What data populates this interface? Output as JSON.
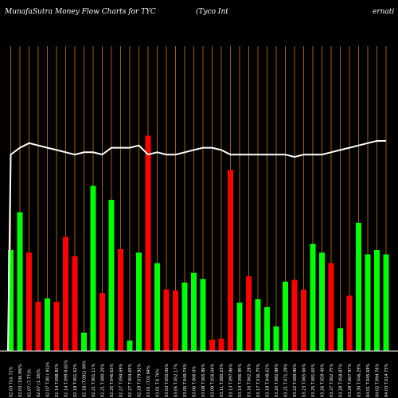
{
  "header": {
    "title_left": "MunafaSutra  Money Flow  Charts for TYC",
    "title_mid": "(Tyco  Int",
    "title_right": "ernati"
  },
  "colors": {
    "background": "#000000",
    "up": "#00ff00",
    "down": "#ff0000",
    "price_line": "#ffffff",
    "grid": "#cc7a00",
    "baseline": "#ffffff"
  },
  "chart_data": {
    "type": "bar",
    "title": "MunafaSutra  Money Flow  Charts for TYC (Tyco  Internati",
    "grid": true,
    "categories": [
      "02.03 Tick 72%",
      "02.03 (106.98)%",
      "02.07 (7.77)%",
      "02.07 (1.18)%",
      "02.07 T.00 ( 91)%",
      "02.14 T.098.92%",
      "02.14 T.099 8.65%",
      "02.18 T.001 62%",
      "02.18 (T.092) 09%",
      "02.21 T.001 11%",
      "02.21 T.080.20%",
      "02.25 T.046.63%",
      "02.27 T.094 69%",
      "02.27 T.004.65%",
      "02.29 T.079 92%",
      "03.01 (T.0) 94%",
      "03.01 T.0 76%",
      "03.03 T.050.06%",
      "03.05 T.052.17%",
      "03.05 T.049.74%",
      "03.06 T.006 0%",
      "03.08 T.065 86%",
      "03.09 T.056.04%",
      "03.11 T.080.23%",
      "03.13 T.097.86%",
      "03.14 T.096 95%",
      "03.16 T.062.28%",
      "03.17 T.036.75%",
      "03.19 T.048.62%",
      "03.20 T.082.98%",
      "03.21 T.071.29%",
      "03.22 T.089.96%",
      "03.23 T.065 66%",
      "03.25 T.081.65%",
      "03.26 T.059 40%",
      "03.27 T.062.75%",
      "03.28 T.058.87%",
      "03.29 T.067 97%",
      "03.30 T.046.29%",
      "04.01 T.045.69%",
      "04.02 T.094 76%",
      "04.03 T.014 73%"
    ],
    "series": [
      {
        "values": [
          115,
          158,
          112,
          56,
          60,
          56,
          130,
          108,
          21,
          188,
          66,
          172,
          116,
          12,
          112,
          245,
          100,
          70,
          69,
          78,
          89,
          82,
          13,
          14,
          206,
          55,
          85,
          59,
          50,
          28,
          79,
          81,
          70,
          122,
          112,
          100,
          26,
          63,
          146,
          110,
          115,
          110
        ]
      },
      {
        "values": [
          1,
          1,
          0,
          0,
          1,
          0,
          0,
          0,
          1,
          1,
          0,
          1,
          0,
          1,
          1,
          0,
          1,
          0,
          0,
          1,
          1,
          1,
          0,
          0,
          0,
          1,
          0,
          1,
          1,
          1,
          1,
          0,
          0,
          1,
          1,
          0,
          1,
          0,
          1,
          1,
          1,
          1
        ]
      },
      {
        "values": [
          86,
          89,
          91,
          90,
          89,
          88,
          87,
          86,
          87,
          87,
          86,
          89,
          89,
          89,
          90,
          86,
          87,
          86,
          86,
          87,
          88,
          89,
          89,
          88,
          86,
          86,
          86,
          86,
          86,
          86,
          86,
          85,
          86,
          86,
          86,
          87,
          88,
          89,
          90,
          91,
          92,
          92
        ]
      }
    ],
    "ylim": [
      0,
      260
    ]
  }
}
